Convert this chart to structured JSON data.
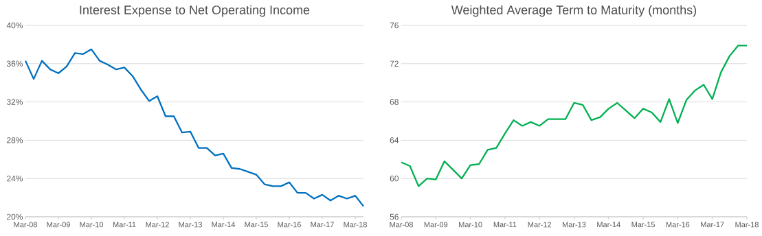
{
  "chart_data": [
    {
      "type": "line",
      "title": "Interest Expense to Net Operating Income",
      "categories": [
        "Mar-08",
        null,
        null,
        null,
        "Mar-09",
        null,
        null,
        null,
        "Mar-10",
        null,
        null,
        null,
        "Mar-11",
        null,
        null,
        null,
        "Mar-12",
        null,
        null,
        null,
        "Mar-13",
        null,
        null,
        null,
        "Mar-14",
        null,
        null,
        null,
        "Mar-15",
        null,
        null,
        null,
        "Mar-16",
        null,
        null,
        null,
        "Mar-17",
        null,
        null,
        null,
        "Mar-18",
        null
      ],
      "series": [
        {
          "color": "#0070c0",
          "values": [
            36.3,
            34.4,
            36.3,
            35.4,
            35.0,
            35.7,
            37.1,
            37.0,
            37.5,
            36.3,
            35.9,
            35.4,
            35.6,
            34.7,
            33.3,
            32.1,
            32.6,
            30.5,
            30.5,
            28.8,
            28.9,
            27.2,
            27.2,
            26.4,
            26.6,
            25.1,
            25.0,
            24.7,
            24.4,
            23.4,
            23.2,
            23.2,
            23.6,
            22.5,
            22.5,
            21.9,
            22.3,
            21.7,
            22.2,
            21.9,
            22.2,
            21.1
          ]
        }
      ],
      "ylim": [
        20,
        40
      ],
      "yticks": [
        {
          "value": 20,
          "label": "20%"
        },
        {
          "value": 24,
          "label": "24%"
        },
        {
          "value": 28,
          "label": "28%"
        },
        {
          "value": 32,
          "label": "32%"
        },
        {
          "value": 36,
          "label": "36%"
        },
        {
          "value": 40,
          "label": "40%"
        }
      ],
      "grid": "y"
    },
    {
      "type": "line",
      "title": "Weighted Average Term to Maturity (months)",
      "categories": [
        "Mar-08",
        null,
        null,
        null,
        "Mar-09",
        null,
        null,
        null,
        "Mar-10",
        null,
        null,
        null,
        "Mar-11",
        null,
        null,
        null,
        "Mar-12",
        null,
        null,
        null,
        "Mar-13",
        null,
        null,
        null,
        "Mar-14",
        null,
        null,
        null,
        "Mar-15",
        null,
        null,
        null,
        "Mar-16",
        null,
        null,
        null,
        "Mar-17",
        null,
        null,
        null,
        "Mar-18"
      ],
      "series": [
        {
          "color": "#00b050",
          "values": [
            61.7,
            61.3,
            59.2,
            60.0,
            59.9,
            61.8,
            60.9,
            60.0,
            61.4,
            61.5,
            63.0,
            63.2,
            64.7,
            66.1,
            65.5,
            65.9,
            65.5,
            66.2,
            66.2,
            66.2,
            67.9,
            67.7,
            66.1,
            66.4,
            67.3,
            67.9,
            67.1,
            66.3,
            67.3,
            66.9,
            65.9,
            68.3,
            65.8,
            68.2,
            69.2,
            69.8,
            68.3,
            71.1,
            72.8,
            73.9,
            73.9
          ]
        }
      ],
      "ylim": [
        56,
        76
      ],
      "yticks": [
        56,
        60,
        64,
        68,
        72,
        76
      ],
      "grid": "y"
    }
  ]
}
